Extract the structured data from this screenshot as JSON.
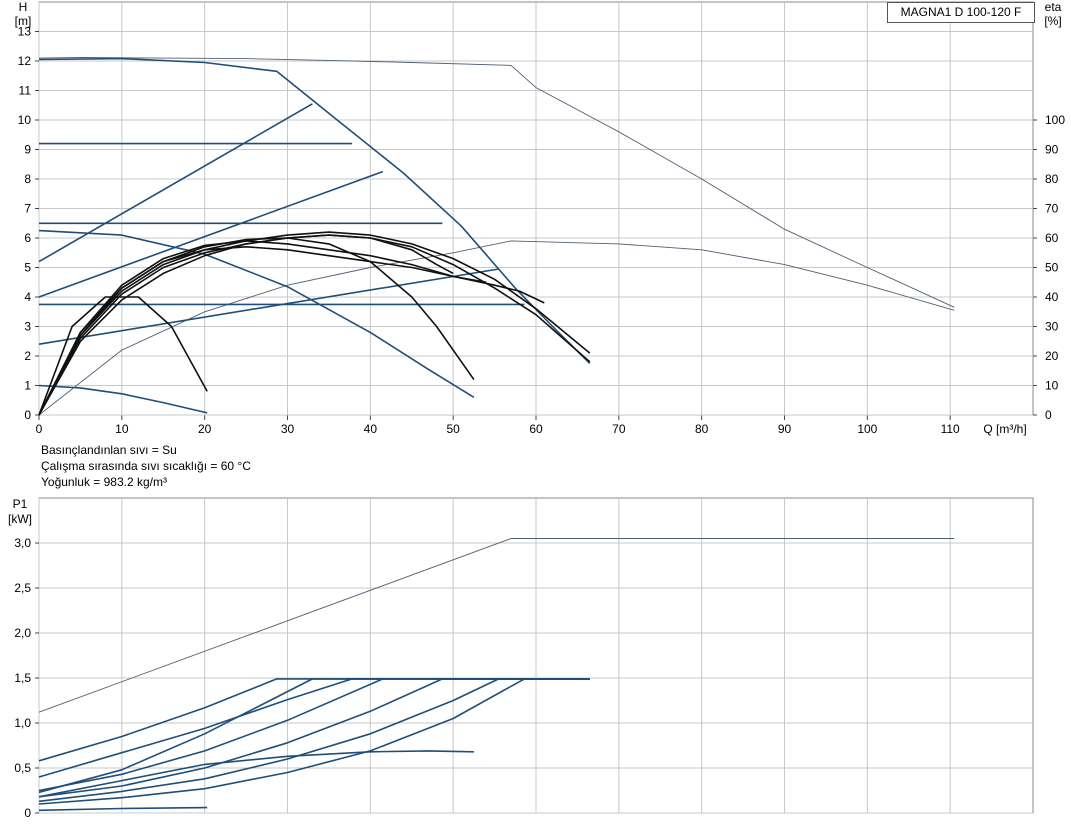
{
  "model": "MAGNA1 D 100-120 F",
  "info": {
    "fluid": "Basınçlandınlan sıvı = Su",
    "temperature": "Çalışma sırasında sıvı sıcaklığı = 60 °C",
    "density": "Yoğunluk = 983.2 kg/m³"
  },
  "colors": {
    "blue": "#1f4e79",
    "black": "#111111",
    "grey": "#4f5f72",
    "grid": "#c8c8c8"
  },
  "chart_data": [
    {
      "type": "line",
      "axes": {
        "x": {
          "label": "Q [m³/h]",
          "range": [
            0,
            120
          ],
          "ticks": [
            0,
            10,
            20,
            30,
            40,
            50,
            60,
            70,
            80,
            90,
            100,
            110
          ]
        },
        "y_left": {
          "label_top": "H",
          "label_unit": "[m]",
          "range": [
            0,
            14
          ],
          "ticks": [
            0,
            1,
            2,
            3,
            4,
            5,
            6,
            7,
            8,
            9,
            10,
            11,
            12,
            13
          ]
        },
        "y_right": {
          "label_top": "eta",
          "label_unit": "[%]",
          "range": [
            0,
            140
          ],
          "ticks": [
            0,
            10,
            20,
            30,
            40,
            50,
            60,
            70,
            80,
            90,
            100
          ]
        }
      },
      "grid": true,
      "series": [
        {
          "role": "twin-pump max head",
          "color": "grey",
          "x": [
            0,
            5,
            15,
            25,
            35,
            45,
            57,
            60,
            70,
            80,
            90,
            100,
            110.5
          ],
          "y": [
            12.1,
            12.12,
            12.1,
            12.08,
            12.02,
            11.95,
            11.85,
            11.1,
            9.6,
            8.0,
            6.3,
            5.0,
            3.65
          ]
        },
        {
          "role": "twin-pump efficiency",
          "axis": "right",
          "color": "grey",
          "x": [
            0,
            10,
            20,
            30,
            40,
            50,
            57,
            70,
            80,
            90,
            100,
            110.5
          ],
          "y": [
            0,
            22,
            35,
            44,
            50,
            55,
            59,
            58,
            56,
            51,
            44,
            35.5
          ]
        },
        {
          "role": "max speed curve",
          "color": "blue",
          "x": [
            0,
            10,
            20,
            28.7,
            36,
            44,
            51,
            57.5,
            62,
            66.5
          ],
          "y": [
            12.05,
            12.08,
            11.95,
            11.65,
            10.0,
            8.2,
            6.4,
            4.3,
            3.0,
            1.75
          ]
        },
        {
          "role": "proportional pressure 1",
          "color": "blue",
          "x": [
            0,
            33
          ],
          "y": [
            5.2,
            10.55
          ]
        },
        {
          "role": "proportional pressure 2",
          "color": "blue",
          "x": [
            0,
            41.5
          ],
          "y": [
            4.0,
            8.25
          ]
        },
        {
          "role": "proportional pressure 3",
          "color": "blue",
          "x": [
            0,
            55.5
          ],
          "y": [
            2.4,
            4.95
          ]
        },
        {
          "role": "constant pressure 9.2 m",
          "color": "blue",
          "x": [
            0,
            37.8
          ],
          "y": [
            9.2,
            9.2
          ]
        },
        {
          "role": "constant pressure 6.5 m",
          "color": "blue",
          "x": [
            0,
            48.7
          ],
          "y": [
            6.5,
            6.5
          ]
        },
        {
          "role": "constant pressure 3.75 m",
          "color": "blue",
          "x": [
            0,
            58.6
          ],
          "y": [
            3.75,
            3.75
          ]
        },
        {
          "role": "min speed curve",
          "color": "blue",
          "x": [
            0,
            10,
            20,
            30,
            40,
            47,
            52.5
          ],
          "y": [
            6.25,
            6.1,
            5.45,
            4.35,
            2.8,
            1.55,
            0.6
          ]
        },
        {
          "role": "low speed curve",
          "color": "blue",
          "x": [
            0,
            5,
            10,
            15,
            20.3
          ],
          "y": [
            1.0,
            0.92,
            0.72,
            0.42,
            0.07
          ]
        },
        {
          "role": "efficiency 1",
          "axis": "right",
          "color": "black",
          "x": [
            0,
            4,
            8,
            12,
            16,
            20.3
          ],
          "y": [
            0,
            30,
            40,
            40,
            30,
            8
          ]
        },
        {
          "role": "efficiency 2",
          "axis": "right",
          "color": "black",
          "x": [
            0,
            5,
            10,
            15,
            20,
            25,
            30,
            35,
            40,
            45,
            48,
            52.5
          ],
          "y": [
            0,
            28,
            43,
            52,
            57,
            59.5,
            60,
            58,
            52,
            40,
            30,
            12
          ]
        },
        {
          "role": "efficiency 3",
          "axis": "right",
          "color": "black",
          "x": [
            0,
            5,
            10,
            15,
            20,
            25,
            30,
            35,
            40,
            45,
            50,
            55,
            60,
            66.5
          ],
          "y": [
            0,
            27,
            42,
            51,
            56,
            59,
            61,
            62,
            61,
            58,
            53,
            46,
            36,
            21
          ]
        },
        {
          "role": "efficiency 4",
          "axis": "right",
          "color": "black",
          "x": [
            0,
            5,
            10,
            15,
            20,
            25,
            30,
            35,
            40,
            45,
            50,
            55,
            60,
            66.5
          ],
          "y": [
            0,
            26,
            41,
            50,
            55,
            58,
            60,
            61,
            60,
            57,
            51,
            43,
            34,
            18
          ]
        },
        {
          "role": "efficiency 5",
          "axis": "right",
          "color": "black",
          "x": [
            0,
            5,
            10,
            15,
            20,
            25,
            30,
            35,
            40,
            45,
            50,
            55,
            58,
            61
          ],
          "y": [
            0,
            28,
            44,
            53,
            57.5,
            59,
            58,
            56,
            54,
            51,
            47,
            44,
            42,
            38
          ]
        },
        {
          "role": "efficiency 6",
          "axis": "right",
          "color": "black",
          "x": [
            0,
            5,
            10,
            15,
            20,
            25,
            30,
            35,
            40,
            45,
            50,
            54
          ],
          "y": [
            0,
            27,
            43,
            52,
            56,
            57,
            56,
            54,
            52,
            50,
            47,
            45
          ]
        },
        {
          "role": "efficiency 7",
          "axis": "right",
          "color": "black",
          "x": [
            0,
            5,
            10,
            15,
            20,
            25,
            30,
            35,
            40,
            45,
            48,
            50
          ],
          "y": [
            0,
            25,
            39,
            48,
            54,
            58,
            60,
            61,
            60,
            56,
            51,
            48
          ]
        }
      ]
    },
    {
      "type": "line",
      "axes": {
        "x": {
          "range": [
            0,
            120
          ]
        },
        "y": {
          "label_top": "P1",
          "label_unit": "[kW]",
          "range": [
            0,
            3.5
          ],
          "ticks": [
            "0",
            "0,5",
            "1,0",
            "1,5",
            "2,0",
            "2,5",
            "3,0"
          ],
          "tick_values": [
            0,
            0.5,
            1.0,
            1.5,
            2.0,
            2.5,
            3.0
          ]
        }
      },
      "grid": true,
      "series": [
        {
          "role": "twin-pump max power",
          "color": "grey",
          "x": [
            0,
            57,
            90,
            110.5
          ],
          "y": [
            1.12,
            3.05,
            3.05,
            3.05
          ]
        },
        {
          "role": "max speed power",
          "color": "blue",
          "x": [
            0,
            10,
            20,
            28.7,
            66.5
          ],
          "y": [
            0.58,
            0.85,
            1.17,
            1.49,
            1.49
          ]
        },
        {
          "role": "power curve 2",
          "color": "blue",
          "x": [
            0,
            10,
            20,
            33,
            66.5
          ],
          "y": [
            0.23,
            0.48,
            0.88,
            1.49,
            1.49
          ]
        },
        {
          "role": "power curve 3",
          "color": "blue",
          "x": [
            0,
            10,
            20,
            30,
            37.8,
            66.5
          ],
          "y": [
            0.4,
            0.67,
            0.94,
            1.26,
            1.49,
            1.49
          ]
        },
        {
          "role": "power curve 4",
          "color": "blue",
          "x": [
            0,
            10,
            20,
            30,
            41.5,
            66.5
          ],
          "y": [
            0.25,
            0.43,
            0.69,
            1.03,
            1.49,
            1.49
          ]
        },
        {
          "role": "power curve 5",
          "color": "blue",
          "x": [
            0,
            10,
            20,
            30,
            40,
            48.7,
            66.5
          ],
          "y": [
            0.18,
            0.3,
            0.5,
            0.78,
            1.13,
            1.49,
            1.49
          ]
        },
        {
          "role": "power curve 6",
          "color": "blue",
          "x": [
            0,
            10,
            20,
            30,
            40,
            50,
            55.5,
            66.5
          ],
          "y": [
            0.13,
            0.24,
            0.38,
            0.6,
            0.88,
            1.25,
            1.49,
            1.49
          ]
        },
        {
          "role": "power curve 7",
          "color": "blue",
          "x": [
            0,
            10,
            20,
            30,
            40,
            50,
            58.6,
            66.5
          ],
          "y": [
            0.1,
            0.17,
            0.27,
            0.45,
            0.69,
            1.05,
            1.49,
            1.49
          ]
        },
        {
          "role": "min speed power",
          "color": "blue",
          "x": [
            0,
            10,
            20,
            30,
            40,
            47,
            52.5
          ],
          "y": [
            0.18,
            0.36,
            0.54,
            0.63,
            0.68,
            0.69,
            0.68
          ]
        },
        {
          "role": "low speed power",
          "color": "blue",
          "x": [
            0,
            10,
            20.3
          ],
          "y": [
            0.03,
            0.05,
            0.06
          ]
        }
      ]
    }
  ]
}
